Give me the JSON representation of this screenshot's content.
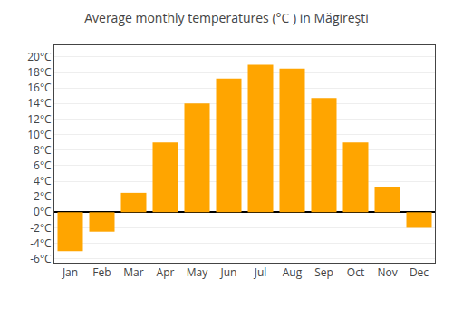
{
  "chart_data": {
    "type": "bar",
    "title": "Average monthly temperatures (°C ) in Măgireşti",
    "categories": [
      "Jan",
      "Feb",
      "Mar",
      "Apr",
      "May",
      "Jun",
      "Jul",
      "Aug",
      "Sep",
      "Oct",
      "Nov",
      "Dec"
    ],
    "values": [
      -5.0,
      -2.5,
      2.5,
      9.0,
      14.0,
      17.2,
      19.0,
      18.5,
      14.7,
      9.0,
      3.2,
      -2.0
    ],
    "color": "#FFA500",
    "ylim": [
      -6.5,
      21.5
    ],
    "yticks": [
      {
        "value": -6,
        "label": "-6°C"
      },
      {
        "value": -4,
        "label": "-4°C"
      },
      {
        "value": -2,
        "label": "-2°C"
      },
      {
        "value": 0,
        "label": "0°C"
      },
      {
        "value": 2,
        "label": "2°C"
      },
      {
        "value": 4,
        "label": "4°C"
      },
      {
        "value": 6,
        "label": "6°C"
      },
      {
        "value": 8,
        "label": "8°C"
      },
      {
        "value": 10,
        "label": "10°C"
      },
      {
        "value": 12,
        "label": "12°C"
      },
      {
        "value": 14,
        "label": "14°C"
      },
      {
        "value": 16,
        "label": "16°C"
      },
      {
        "value": 18,
        "label": "18°C"
      },
      {
        "value": 20,
        "label": "20°C"
      }
    ],
    "grid": true
  }
}
